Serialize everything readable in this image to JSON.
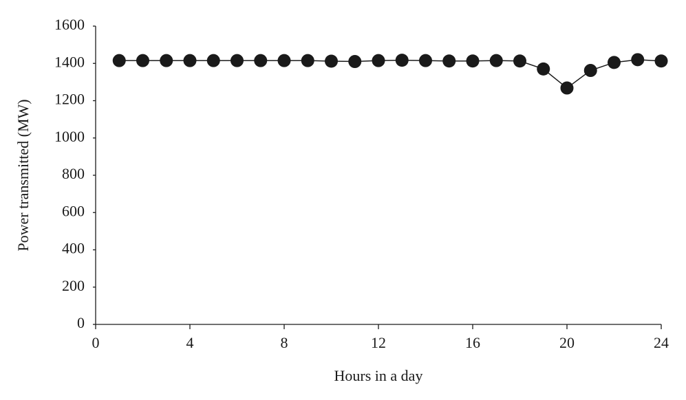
{
  "chart_data": {
    "type": "line",
    "x_label": "Hours in a day",
    "y_label": "Power transmitted (MW)",
    "x": [
      1,
      2,
      3,
      4,
      5,
      6,
      7,
      8,
      9,
      10,
      11,
      12,
      13,
      14,
      15,
      16,
      17,
      18,
      19,
      20,
      21,
      22,
      23,
      24
    ],
    "values": [
      1415,
      1415,
      1415,
      1415,
      1415,
      1415,
      1415,
      1415,
      1415,
      1412,
      1410,
      1415,
      1417,
      1415,
      1413,
      1413,
      1415,
      1413,
      1370,
      1268,
      1362,
      1405,
      1420,
      1413
    ],
    "color": "#1a1a1a",
    "xlim": [
      0,
      24
    ],
    "xticks": [
      0,
      4,
      8,
      12,
      16,
      20,
      24
    ],
    "ylim": [
      0,
      1600
    ],
    "yticks": [
      0,
      200,
      400,
      600,
      800,
      1000,
      1200,
      1400,
      1600
    ],
    "grid": false
  }
}
